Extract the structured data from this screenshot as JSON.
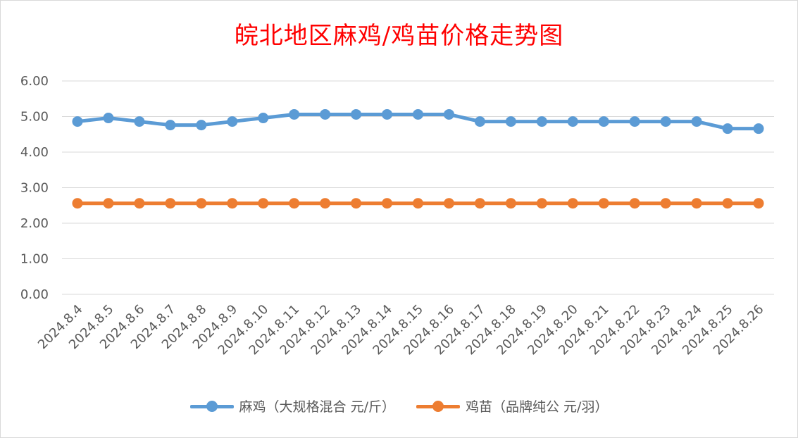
{
  "chart_data": {
    "type": "line",
    "title": "皖北地区麻鸡/鸡苗价格走势图",
    "categories": [
      "2024.8.4",
      "2024.8.5",
      "2024.8.6",
      "2024.8.7",
      "2024.8.8",
      "2024.8.9",
      "2024.8.10",
      "2024.8.11",
      "2024.8.12",
      "2024.8.13",
      "2024.8.14",
      "2024.8.15",
      "2024.8.16",
      "2024.8.17",
      "2024.8.18",
      "2024.8.19",
      "2024.8.20",
      "2024.8.21",
      "2024.8.22",
      "2024.8.23",
      "2024.8.24",
      "2024.8.25",
      "2024.8.26"
    ],
    "series": [
      {
        "name": "麻鸡（大规格混合 元/斤）",
        "color": "#5b9bd5",
        "values": [
          4.86,
          4.96,
          4.86,
          4.76,
          4.76,
          4.86,
          4.96,
          5.06,
          5.06,
          5.06,
          5.06,
          5.06,
          5.06,
          4.86,
          4.86,
          4.86,
          4.86,
          4.86,
          4.86,
          4.86,
          4.86,
          4.66,
          4.66
        ]
      },
      {
        "name": "鸡苗（品牌纯公 元/羽）",
        "color": "#ed7d31",
        "values": [
          2.56,
          2.56,
          2.56,
          2.56,
          2.56,
          2.56,
          2.56,
          2.56,
          2.56,
          2.56,
          2.56,
          2.56,
          2.56,
          2.56,
          2.56,
          2.56,
          2.56,
          2.56,
          2.56,
          2.56,
          2.56,
          2.56,
          2.56
        ]
      }
    ],
    "y_ticks": [
      "0.00",
      "1.00",
      "2.00",
      "3.00",
      "4.00",
      "5.00",
      "6.00"
    ],
    "ylim": [
      0,
      6
    ],
    "grid": true,
    "legend_position": "bottom"
  }
}
